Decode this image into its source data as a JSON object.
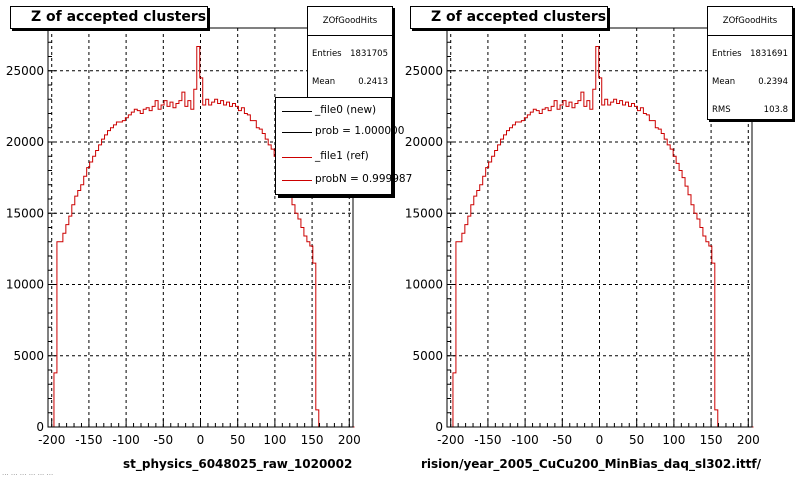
{
  "chart_data": [
    {
      "type": "histogram",
      "title": "Z of accepted clusters",
      "xlabel": "st_physics_6048025_raw_1020002",
      "ylabel": "",
      "xlim": [
        -205,
        205
      ],
      "ylim": [
        0,
        28000
      ],
      "grid": true,
      "x_ticks": [
        -200,
        -150,
        -100,
        -50,
        0,
        50,
        100,
        150,
        200
      ],
      "y_ticks": [
        0,
        5000,
        10000,
        15000,
        20000,
        25000
      ],
      "stats": {
        "name": "ZOfGoodHits",
        "entries_label": "Entries",
        "entries": "1831705",
        "mean_label": "Mean",
        "mean": "0.2413"
      },
      "legend": [
        {
          "label": "_file0 (new)",
          "color": "#000000"
        },
        {
          "label": "prob = 1.000000",
          "color": "#000000"
        },
        {
          "label": "_file1 (ref)",
          "color": "#cc0000"
        },
        {
          "label": "probN = 0.999987",
          "color": "#cc0000"
        }
      ],
      "series": [
        {
          "color": "#cc0000"
        }
      ]
    },
    {
      "type": "histogram",
      "title": "Z of accepted clusters",
      "xlabel": "rision/year_2005_CuCu200_MinBias_daq_sl302.ittf/",
      "ylabel": "",
      "xlim": [
        -205,
        205
      ],
      "ylim": [
        0,
        28000
      ],
      "grid": true,
      "x_ticks": [
        -200,
        -150,
        -100,
        -50,
        0,
        50,
        100,
        150,
        200
      ],
      "y_ticks": [
        0,
        5000,
        10000,
        15000,
        20000,
        25000
      ],
      "stats": {
        "name": "ZOfGoodHits",
        "entries_label": "Entries",
        "entries": "1831691",
        "mean_label": "Mean",
        "mean": "0.2394",
        "rms_label": "RMS",
        "rms": "103.8"
      },
      "series": [
        {
          "color": "#cc0000"
        }
      ]
    }
  ],
  "histogram_bins": {
    "x_start": -205,
    "bin_width": 4,
    "values": [
      0,
      0,
      3800,
      13000,
      13000,
      13600,
      14200,
      14800,
      15600,
      16200,
      16600,
      17000,
      17600,
      18200,
      18600,
      19000,
      19400,
      19800,
      20200,
      20500,
      20800,
      21000,
      21200,
      21400,
      21400,
      21500,
      21700,
      21900,
      22100,
      22300,
      22200,
      22000,
      22300,
      22400,
      22200,
      22500,
      22900,
      22300,
      22600,
      22900,
      22500,
      22800,
      22400,
      22700,
      22900,
      23500,
      22500,
      22900,
      22300,
      23700,
      26700,
      24500,
      22600,
      23000,
      22600,
      22800,
      23000,
      22700,
      22900,
      22600,
      22800,
      22500,
      22700,
      22500,
      22200,
      22400,
      22000,
      21900,
      21500,
      21500,
      21000,
      20900,
      20600,
      20200,
      19800,
      19500,
      19000,
      18500,
      18000,
      17500,
      16900,
      16300,
      15600,
      15000,
      14600,
      14000,
      13400,
      13000,
      12700,
      11500,
      1200,
      0,
      0,
      0,
      0,
      0,
      0,
      0,
      0,
      0,
      0,
      0,
      0
    ]
  },
  "footer_note": "... ... ... ... ... ..."
}
